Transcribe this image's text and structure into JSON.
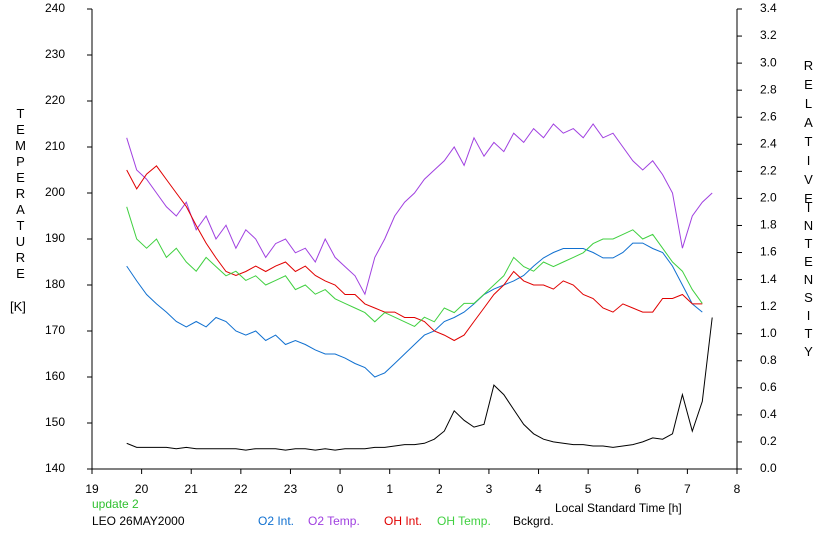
{
  "chart_data": {
    "type": "line",
    "y_label": "TEMPERATURE",
    "y_unit": "[K]",
    "y2_label_1": "RELATIVE",
    "y2_label_2": "INTENSITY",
    "x_label": "Local Standard Time [h]",
    "notes": [
      "update 2",
      "LEO 26MAY2000"
    ],
    "note_colors": [
      "#30c030",
      "#000000"
    ],
    "xlim": [
      19,
      32
    ],
    "xticks": [
      19,
      20,
      21,
      22,
      23,
      {
        "value": 24,
        "label": "0"
      },
      {
        "value": 25,
        "label": "1"
      },
      {
        "value": 26,
        "label": "2"
      },
      {
        "value": 27,
        "label": "3"
      },
      {
        "value": 28,
        "label": "4"
      },
      {
        "value": 29,
        "label": "5"
      },
      {
        "value": 30,
        "label": "6"
      },
      {
        "value": 31,
        "label": "7"
      },
      {
        "value": 32,
        "label": "8"
      }
    ],
    "ylim": [
      140,
      240
    ],
    "yticks": [
      140,
      150,
      160,
      170,
      180,
      190,
      200,
      210,
      220,
      230,
      240
    ],
    "y2lim": [
      0,
      3.4
    ],
    "y2ticks": [
      {
        "value": 0,
        "label": "0.0"
      },
      0.2,
      0.4,
      0.6,
      0.8,
      {
        "value": 1,
        "label": "1.0"
      },
      1.2,
      1.4,
      1.6,
      1.8,
      {
        "value": 2,
        "label": "2.0"
      },
      2.2,
      2.4,
      2.6,
      2.8,
      {
        "value": 3,
        "label": "3.0"
      },
      3.2,
      3.4
    ],
    "x": [
      19.7,
      19.9,
      20.1,
      20.3,
      20.5,
      20.7,
      20.9,
      21.1,
      21.3,
      21.5,
      21.7,
      21.9,
      22.1,
      22.3,
      22.5,
      22.7,
      22.9,
      23.1,
      23.3,
      23.5,
      23.7,
      23.9,
      24.1,
      24.3,
      24.5,
      24.7,
      24.9,
      25.1,
      25.3,
      25.5,
      25.7,
      25.9,
      26.1,
      26.3,
      26.5,
      26.7,
      26.9,
      27.1,
      27.3,
      27.5,
      27.7,
      27.9,
      28.1,
      28.3,
      28.5,
      28.7,
      28.9,
      29.1,
      29.3,
      29.5,
      29.7,
      29.9,
      30.1,
      30.3,
      30.5,
      30.7,
      30.9,
      31.1,
      31.3,
      31.5
    ],
    "series": [
      {
        "name": "O2 Int.",
        "color": "#1070d0",
        "axis": "y2",
        "values": [
          1.5,
          1.39,
          1.29,
          1.22,
          1.16,
          1.09,
          1.05,
          1.09,
          1.05,
          1.12,
          1.09,
          1.02,
          0.99,
          1.02,
          0.95,
          0.99,
          0.92,
          0.95,
          0.92,
          0.88,
          0.85,
          0.85,
          0.82,
          0.78,
          0.75,
          0.68,
          0.71,
          0.78,
          0.85,
          0.92,
          0.99,
          1.02,
          1.09,
          1.12,
          1.16,
          1.22,
          1.29,
          1.33,
          1.36,
          1.39,
          1.43,
          1.5,
          1.56,
          1.6,
          1.63,
          1.63,
          1.63,
          1.6,
          1.56,
          1.56,
          1.6,
          1.67,
          1.67,
          1.63,
          1.6,
          1.5,
          1.36,
          1.22,
          1.16,
          null
        ]
      },
      {
        "name": "O2 Temp.",
        "color": "#a040e0",
        "values": [
          212,
          205,
          203,
          200,
          197,
          195,
          198,
          192,
          195,
          190,
          193,
          188,
          192,
          190,
          186,
          189,
          190,
          187,
          188,
          185,
          190,
          186,
          184,
          182,
          178,
          186,
          190,
          195,
          198,
          200,
          203,
          205,
          207,
          210,
          206,
          212,
          208,
          211,
          209,
          213,
          211,
          214,
          212,
          215,
          213,
          214,
          212,
          215,
          212,
          213,
          210,
          207,
          205,
          207,
          204,
          200,
          188,
          195,
          198,
          200
        ]
      },
      {
        "name": "OH Int.",
        "color": "#e00000",
        "axis": "y2",
        "values": [
          2.21,
          2.07,
          2.18,
          2.24,
          2.14,
          2.04,
          1.94,
          1.8,
          1.67,
          1.56,
          1.46,
          1.43,
          1.46,
          1.5,
          1.46,
          1.5,
          1.53,
          1.46,
          1.5,
          1.43,
          1.39,
          1.36,
          1.29,
          1.29,
          1.22,
          1.19,
          1.16,
          1.16,
          1.12,
          1.12,
          1.09,
          1.02,
          0.99,
          0.95,
          0.99,
          1.09,
          1.19,
          1.29,
          1.36,
          1.46,
          1.39,
          1.36,
          1.36,
          1.33,
          1.39,
          1.36,
          1.29,
          1.26,
          1.19,
          1.16,
          1.22,
          1.19,
          1.16,
          1.16,
          1.26,
          1.26,
          1.29,
          1.22,
          1.22,
          null
        ]
      },
      {
        "name": "OH Temp.",
        "color": "#40d040",
        "values": [
          197,
          190,
          188,
          190,
          186,
          188,
          185,
          183,
          186,
          184,
          182,
          183,
          181,
          182,
          180,
          181,
          182,
          179,
          180,
          178,
          179,
          177,
          176,
          175,
          174,
          172,
          174,
          173,
          172,
          171,
          173,
          172,
          175,
          174,
          176,
          176,
          178,
          180,
          182,
          186,
          184,
          183,
          185,
          184,
          185,
          186,
          187,
          189,
          190,
          190,
          191,
          192,
          190,
          191,
          188,
          185,
          183,
          179,
          176,
          null
        ]
      },
      {
        "name": "Bckgrd.",
        "color": "#000000",
        "axis": "y2",
        "values": [
          0.19,
          0.16,
          0.16,
          0.16,
          0.16,
          0.15,
          0.16,
          0.15,
          0.15,
          0.15,
          0.15,
          0.15,
          0.14,
          0.15,
          0.15,
          0.15,
          0.14,
          0.15,
          0.15,
          0.14,
          0.15,
          0.14,
          0.15,
          0.15,
          0.15,
          0.16,
          0.16,
          0.17,
          0.18,
          0.18,
          0.19,
          0.22,
          0.28,
          0.43,
          0.36,
          0.31,
          0.33,
          0.62,
          0.55,
          0.44,
          0.33,
          0.26,
          0.22,
          0.2,
          0.19,
          0.18,
          0.18,
          0.17,
          0.17,
          0.16,
          0.17,
          0.18,
          0.2,
          0.23,
          0.22,
          0.26,
          0.55,
          0.28,
          0.5,
          1.12
        ]
      }
    ]
  }
}
